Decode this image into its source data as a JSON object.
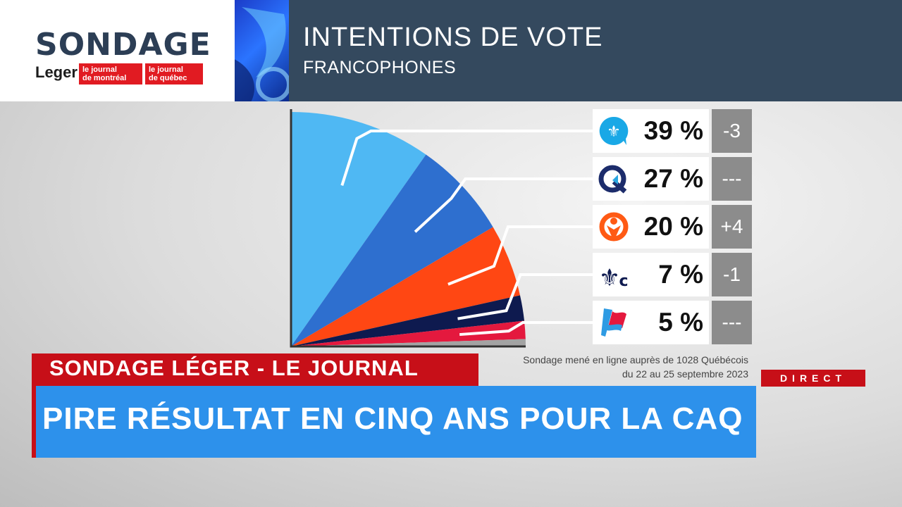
{
  "header": {
    "logo_title": "SONDAGE",
    "pollster": "Leger",
    "partner_1_line1": "le journal",
    "partner_1_line2": "de montréal",
    "partner_2_line1": "le journal",
    "partner_2_line2": "de québec",
    "title": "INTENTIONS DE VOTE",
    "subtitle": "FRANCOPHONES"
  },
  "chart_data": {
    "type": "pie",
    "title": "INTENTIONS DE VOTE",
    "subtitle": "FRANCOPHONES",
    "slices": [
      {
        "party_icon": "fleur-de-lis-bubble-icon",
        "value": 39,
        "label": "39 %",
        "change": "-3",
        "color": "#4fb8f3"
      },
      {
        "party_icon": "q-arrow-icon",
        "value": 27,
        "label": "27 %",
        "change": "---",
        "color": "#2e6fcf"
      },
      {
        "party_icon": "orange-figure-icon",
        "value": 20,
        "label": "20 %",
        "change": "+4",
        "color": "#ff4713"
      },
      {
        "party_icon": "fleur-de-lis-c-icon",
        "value": 7,
        "label": "7 %",
        "change": "-1",
        "color": "#0e1a4f"
      },
      {
        "party_icon": "flag-icon",
        "value": 5,
        "label": "5 %",
        "change": "---",
        "color": "#e4193e"
      }
    ],
    "remainder_color": "#a3a3a3"
  },
  "source_note": {
    "line1": "Sondage mené en ligne auprès de 1028 Québécois",
    "line2": "du 22 au 25 septembre 2023"
  },
  "lower_third": {
    "tag": "SONDAGE LÉGER - LE JOURNAL",
    "headline": "PIRE RÉSULTAT EN CINQ ANS POUR LA CAQ",
    "live": "DIRECT"
  }
}
